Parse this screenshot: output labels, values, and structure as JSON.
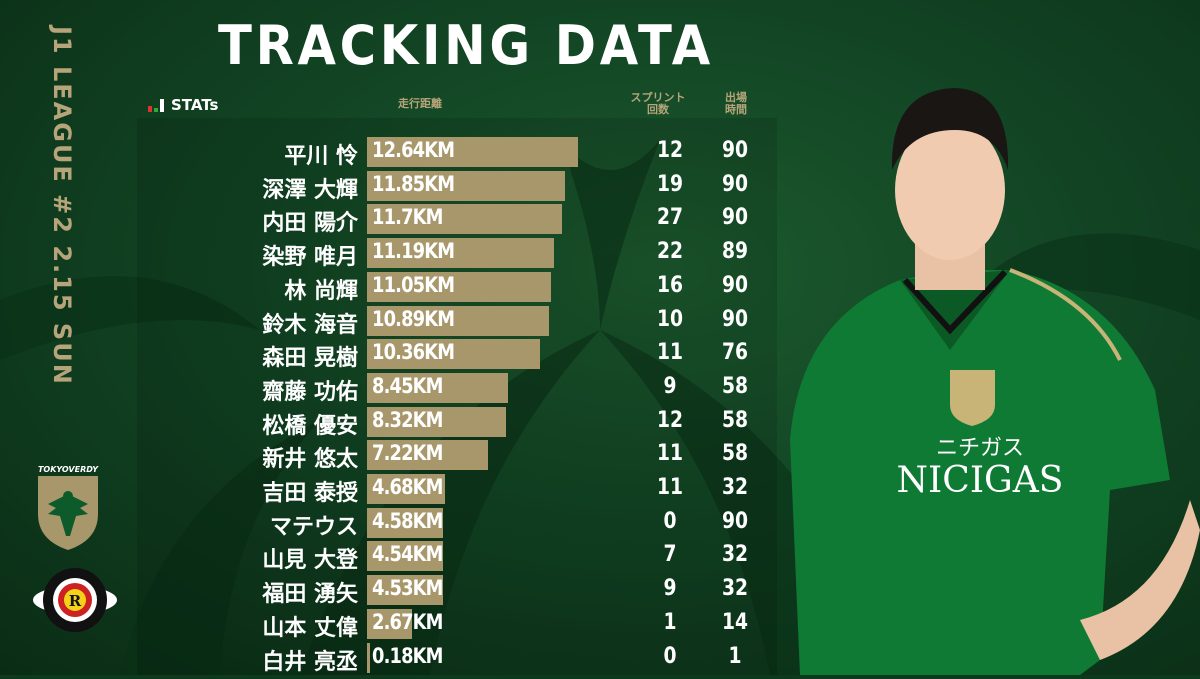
{
  "title": "TRACKING DATA",
  "side_label": "J1 LEAGUE #2 2.15 SUN",
  "stats_label": "STATs",
  "headers": {
    "distance": "走行距離",
    "sprints": "スプリント\n回数",
    "minutes": "出場\n時間"
  },
  "colors": {
    "background": "#124524",
    "accent_gold": "#a8976a",
    "text": "#ffffff"
  },
  "logos": {
    "home": "TOKYOVERDY",
    "away": "KASHIWA REYSOL"
  },
  "jersey": {
    "sponsor": "NICIGAS",
    "sponsor_kana": "ニチガス"
  },
  "chart_data": {
    "type": "bar",
    "title": "TRACKING DATA",
    "unit": "KM",
    "xlim": [
      0,
      12.64
    ],
    "rows": [
      {
        "name": "平川 怜",
        "distance": 12.64,
        "label": "12.64KM",
        "sprints": 12,
        "minutes": 90
      },
      {
        "name": "深澤 大輝",
        "distance": 11.85,
        "label": "11.85KM",
        "sprints": 19,
        "minutes": 90
      },
      {
        "name": "内田 陽介",
        "distance": 11.7,
        "label": "11.7KM",
        "sprints": 27,
        "minutes": 90
      },
      {
        "name": "染野 唯月",
        "distance": 11.19,
        "label": "11.19KM",
        "sprints": 22,
        "minutes": 89
      },
      {
        "name": "林 尚輝",
        "distance": 11.05,
        "label": "11.05KM",
        "sprints": 16,
        "minutes": 90
      },
      {
        "name": "鈴木 海音",
        "distance": 10.89,
        "label": "10.89KM",
        "sprints": 10,
        "minutes": 90
      },
      {
        "name": "森田 晃樹",
        "distance": 10.36,
        "label": "10.36KM",
        "sprints": 11,
        "minutes": 76
      },
      {
        "name": "齋藤 功佑",
        "distance": 8.45,
        "label": "8.45KM",
        "sprints": 9,
        "minutes": 58
      },
      {
        "name": "松橋 優安",
        "distance": 8.32,
        "label": "8.32KM",
        "sprints": 12,
        "minutes": 58
      },
      {
        "name": "新井 悠太",
        "distance": 7.22,
        "label": "7.22KM",
        "sprints": 11,
        "minutes": 58
      },
      {
        "name": "吉田 泰授",
        "distance": 4.68,
        "label": "4.68KM",
        "sprints": 11,
        "minutes": 32
      },
      {
        "name": "マテウス",
        "distance": 4.58,
        "label": "4.58KM",
        "sprints": 0,
        "minutes": 90
      },
      {
        "name": "山見 大登",
        "distance": 4.54,
        "label": "4.54KM",
        "sprints": 7,
        "minutes": 32
      },
      {
        "name": "福田 湧矢",
        "distance": 4.53,
        "label": "4.53KM",
        "sprints": 9,
        "minutes": 32
      },
      {
        "name": "山本 丈偉",
        "distance": 2.67,
        "label": "2.67KM",
        "sprints": 1,
        "minutes": 14
      },
      {
        "name": "白井 亮丞",
        "distance": 0.18,
        "label": "0.18KM",
        "sprints": 0,
        "minutes": 1
      }
    ]
  }
}
